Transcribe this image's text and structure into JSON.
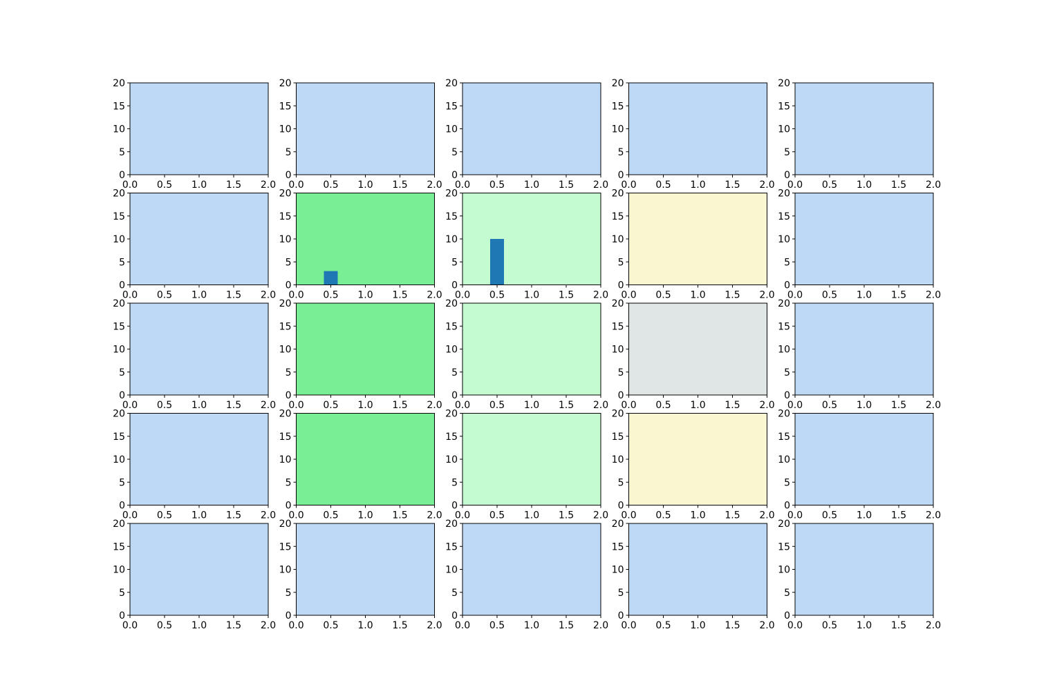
{
  "colors": {
    "default_bg": "#bdd9f6",
    "dark_green": "#7aee95",
    "light_green": "#c4fbd1",
    "pale_yellow": "#faf7d0",
    "light_gray": "#e0e5e6",
    "bar": "#1f77b4"
  },
  "chart_data": {
    "type": "bar",
    "layout": "5x5 grid of small subplots",
    "grid": false,
    "xlim": [
      0,
      2
    ],
    "ylim": [
      0,
      20
    ],
    "x_ticks": [
      "0.0",
      "0.5",
      "1.0",
      "1.5",
      "2.0"
    ],
    "y_ticks": [
      "0",
      "5",
      "10",
      "15",
      "20"
    ],
    "bar_width": 0.2,
    "panels": [
      {
        "row": 0,
        "col": 0,
        "background": "default_bg",
        "bars": []
      },
      {
        "row": 0,
        "col": 1,
        "background": "default_bg",
        "bars": []
      },
      {
        "row": 0,
        "col": 2,
        "background": "default_bg",
        "bars": []
      },
      {
        "row": 0,
        "col": 3,
        "background": "default_bg",
        "bars": []
      },
      {
        "row": 0,
        "col": 4,
        "background": "default_bg",
        "bars": []
      },
      {
        "row": 1,
        "col": 0,
        "background": "default_bg",
        "bars": []
      },
      {
        "row": 1,
        "col": 1,
        "background": "dark_green",
        "bars": [
          {
            "x": 0.5,
            "value": 3
          }
        ]
      },
      {
        "row": 1,
        "col": 2,
        "background": "light_green",
        "bars": [
          {
            "x": 0.5,
            "value": 10
          }
        ]
      },
      {
        "row": 1,
        "col": 3,
        "background": "pale_yellow",
        "bars": []
      },
      {
        "row": 1,
        "col": 4,
        "background": "default_bg",
        "bars": []
      },
      {
        "row": 2,
        "col": 0,
        "background": "default_bg",
        "bars": []
      },
      {
        "row": 2,
        "col": 1,
        "background": "dark_green",
        "bars": []
      },
      {
        "row": 2,
        "col": 2,
        "background": "light_green",
        "bars": []
      },
      {
        "row": 2,
        "col": 3,
        "background": "light_gray",
        "bars": []
      },
      {
        "row": 2,
        "col": 4,
        "background": "default_bg",
        "bars": []
      },
      {
        "row": 3,
        "col": 0,
        "background": "default_bg",
        "bars": []
      },
      {
        "row": 3,
        "col": 1,
        "background": "dark_green",
        "bars": []
      },
      {
        "row": 3,
        "col": 2,
        "background": "light_green",
        "bars": []
      },
      {
        "row": 3,
        "col": 3,
        "background": "pale_yellow",
        "bars": []
      },
      {
        "row": 3,
        "col": 4,
        "background": "default_bg",
        "bars": []
      },
      {
        "row": 4,
        "col": 0,
        "background": "default_bg",
        "bars": []
      },
      {
        "row": 4,
        "col": 1,
        "background": "default_bg",
        "bars": []
      },
      {
        "row": 4,
        "col": 2,
        "background": "default_bg",
        "bars": []
      },
      {
        "row": 4,
        "col": 3,
        "background": "default_bg",
        "bars": []
      },
      {
        "row": 4,
        "col": 4,
        "background": "default_bg",
        "bars": []
      }
    ]
  }
}
